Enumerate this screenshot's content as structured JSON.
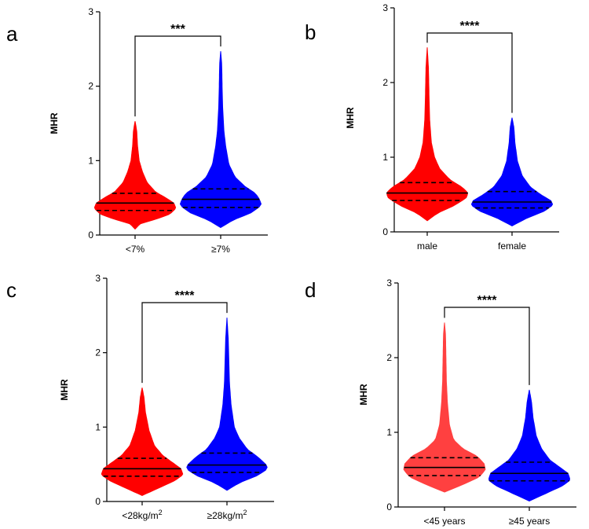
{
  "chart_data": [
    {
      "panel": "a",
      "type": "violin",
      "ylabel": "MHR",
      "ylim": [
        0,
        3
      ],
      "yticks": [
        0,
        1,
        2,
        3
      ],
      "significance": "***",
      "categories": [
        {
          "label": "<7%",
          "label_sup": "",
          "color": "#ff0000",
          "min": 0.08,
          "max": 1.53,
          "q1": 0.33,
          "median": 0.43,
          "q3": 0.56,
          "widths": [
            [
              0.08,
              0.0
            ],
            [
              0.15,
              0.12
            ],
            [
              0.22,
              0.55
            ],
            [
              0.28,
              0.85
            ],
            [
              0.36,
              1.0
            ],
            [
              0.43,
              0.95
            ],
            [
              0.5,
              0.75
            ],
            [
              0.58,
              0.5
            ],
            [
              0.7,
              0.3
            ],
            [
              0.85,
              0.18
            ],
            [
              1.0,
              0.1
            ],
            [
              1.2,
              0.06
            ],
            [
              1.4,
              0.04
            ],
            [
              1.53,
              0.0
            ]
          ]
        },
        {
          "label": "≥7%",
          "label_sup": "",
          "color": "#0000ff",
          "min": 0.1,
          "max": 2.47,
          "q1": 0.37,
          "median": 0.48,
          "q3": 0.62,
          "widths": [
            [
              0.1,
              0.0
            ],
            [
              0.2,
              0.3
            ],
            [
              0.3,
              0.75
            ],
            [
              0.4,
              1.0
            ],
            [
              0.48,
              0.95
            ],
            [
              0.56,
              0.85
            ],
            [
              0.65,
              0.6
            ],
            [
              0.78,
              0.35
            ],
            [
              0.95,
              0.2
            ],
            [
              1.2,
              0.12
            ],
            [
              1.4,
              0.08
            ],
            [
              1.7,
              0.05
            ],
            [
              2.0,
              0.035
            ],
            [
              2.3,
              0.025
            ],
            [
              2.47,
              0.0
            ]
          ]
        }
      ]
    },
    {
      "panel": "b",
      "type": "violin",
      "ylabel": "MHR",
      "ylim": [
        0,
        3
      ],
      "yticks": [
        0,
        1,
        2,
        3
      ],
      "significance": "****",
      "categories": [
        {
          "label": "male",
          "label_sup": "",
          "color": "#ff0000",
          "min": 0.15,
          "max": 2.47,
          "q1": 0.42,
          "median": 0.52,
          "q3": 0.66,
          "widths": [
            [
              0.15,
              0.0
            ],
            [
              0.25,
              0.25
            ],
            [
              0.35,
              0.65
            ],
            [
              0.45,
              0.95
            ],
            [
              0.52,
              1.0
            ],
            [
              0.6,
              0.85
            ],
            [
              0.7,
              0.55
            ],
            [
              0.85,
              0.3
            ],
            [
              1.0,
              0.18
            ],
            [
              1.2,
              0.1
            ],
            [
              1.5,
              0.06
            ],
            [
              1.8,
              0.045
            ],
            [
              2.2,
              0.03
            ],
            [
              2.47,
              0.0
            ]
          ]
        },
        {
          "label": "female",
          "label_sup": "",
          "color": "#0000ff",
          "min": 0.08,
          "max": 1.53,
          "q1": 0.32,
          "median": 0.4,
          "q3": 0.54,
          "widths": [
            [
              0.08,
              0.0
            ],
            [
              0.18,
              0.35
            ],
            [
              0.28,
              0.8
            ],
            [
              0.36,
              1.0
            ],
            [
              0.42,
              0.95
            ],
            [
              0.5,
              0.7
            ],
            [
              0.6,
              0.45
            ],
            [
              0.75,
              0.25
            ],
            [
              0.95,
              0.13
            ],
            [
              1.2,
              0.07
            ],
            [
              1.4,
              0.045
            ],
            [
              1.53,
              0.0
            ]
          ]
        }
      ]
    },
    {
      "panel": "c",
      "type": "violin",
      "ylabel": "MHR",
      "ylim": [
        0,
        3
      ],
      "yticks": [
        0,
        1,
        2,
        3
      ],
      "significance": "****",
      "categories": [
        {
          "label": "<28kg/m",
          "label_sup": "2",
          "color": "#ff0000",
          "min": 0.08,
          "max": 1.53,
          "q1": 0.34,
          "median": 0.44,
          "q3": 0.58,
          "widths": [
            [
              0.08,
              0.0
            ],
            [
              0.18,
              0.4
            ],
            [
              0.28,
              0.8
            ],
            [
              0.36,
              1.0
            ],
            [
              0.44,
              0.95
            ],
            [
              0.52,
              0.75
            ],
            [
              0.62,
              0.5
            ],
            [
              0.75,
              0.3
            ],
            [
              0.95,
              0.17
            ],
            [
              1.2,
              0.08
            ],
            [
              1.4,
              0.045
            ],
            [
              1.53,
              0.0
            ]
          ]
        },
        {
          "label": "≥28kg/m",
          "label_sup": "2",
          "color": "#0000ff",
          "min": 0.15,
          "max": 2.47,
          "q1": 0.39,
          "median": 0.49,
          "q3": 0.65,
          "widths": [
            [
              0.15,
              0.0
            ],
            [
              0.25,
              0.3
            ],
            [
              0.35,
              0.75
            ],
            [
              0.44,
              1.0
            ],
            [
              0.5,
              0.95
            ],
            [
              0.6,
              0.75
            ],
            [
              0.7,
              0.5
            ],
            [
              0.85,
              0.3
            ],
            [
              1.0,
              0.18
            ],
            [
              1.3,
              0.1
            ],
            [
              1.6,
              0.06
            ],
            [
              1.9,
              0.045
            ],
            [
              2.2,
              0.03
            ],
            [
              2.47,
              0.0
            ]
          ]
        }
      ]
    },
    {
      "panel": "d",
      "type": "violin",
      "ylabel": "MHR",
      "ylim": [
        0,
        3
      ],
      "yticks": [
        0,
        1,
        2,
        3
      ],
      "significance": "****",
      "categories": [
        {
          "label": "<45 years",
          "label_sup": "",
          "color": "#ff4040",
          "min": 0.2,
          "max": 2.47,
          "q1": 0.42,
          "median": 0.53,
          "q3": 0.66,
          "widths": [
            [
              0.2,
              0.0
            ],
            [
              0.3,
              0.45
            ],
            [
              0.4,
              0.85
            ],
            [
              0.5,
              1.0
            ],
            [
              0.58,
              0.97
            ],
            [
              0.68,
              0.8
            ],
            [
              0.78,
              0.45
            ],
            [
              0.9,
              0.22
            ],
            [
              1.1,
              0.12
            ],
            [
              1.4,
              0.07
            ],
            [
              1.7,
              0.045
            ],
            [
              2.0,
              0.035
            ],
            [
              2.3,
              0.025
            ],
            [
              2.47,
              0.0
            ]
          ]
        },
        {
          "label": "≥45 years",
          "label_sup": "",
          "color": "#0000ff",
          "min": 0.08,
          "max": 1.57,
          "q1": 0.35,
          "median": 0.45,
          "q3": 0.6,
          "widths": [
            [
              0.08,
              0.0
            ],
            [
              0.18,
              0.4
            ],
            [
              0.28,
              0.8
            ],
            [
              0.36,
              1.0
            ],
            [
              0.45,
              0.95
            ],
            [
              0.53,
              0.75
            ],
            [
              0.63,
              0.5
            ],
            [
              0.78,
              0.3
            ],
            [
              0.95,
              0.17
            ],
            [
              1.2,
              0.09
            ],
            [
              1.4,
              0.055
            ],
            [
              1.57,
              0.0
            ]
          ]
        }
      ]
    }
  ]
}
